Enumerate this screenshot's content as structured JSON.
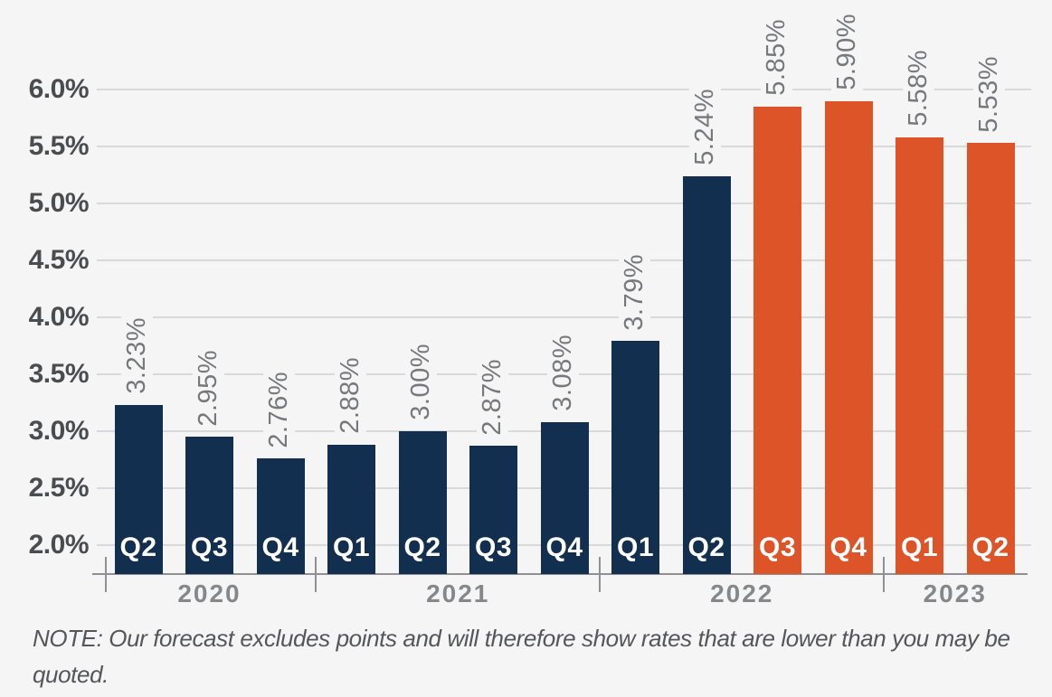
{
  "chart_data": {
    "type": "bar",
    "title": "",
    "xlabel": "",
    "ylabel": "",
    "ylim": [
      2.0,
      6.0
    ],
    "ytick_step": 0.5,
    "yticks": [
      {
        "value": 6.0,
        "label": "6.0%"
      },
      {
        "value": 5.5,
        "label": "5.5%"
      },
      {
        "value": 5.0,
        "label": "5.0%"
      },
      {
        "value": 4.5,
        "label": "4.5%"
      },
      {
        "value": 4.0,
        "label": "4.0%"
      },
      {
        "value": 3.5,
        "label": "3.5%"
      },
      {
        "value": 3.0,
        "label": "3.0%"
      },
      {
        "value": 2.5,
        "label": "2.5%"
      },
      {
        "value": 2.0,
        "label": "2.0%"
      }
    ],
    "grid": true,
    "legend": "none",
    "series_colors": {
      "actual": "#122f4f",
      "forecast": "#dc5427"
    },
    "x_groups": [
      "2020",
      "2021",
      "2022",
      "2023"
    ],
    "bars": [
      {
        "year": "2020",
        "quarter": "Q2",
        "value": 3.23,
        "label": "3.23%",
        "series": "actual"
      },
      {
        "year": "2020",
        "quarter": "Q3",
        "value": 2.95,
        "label": "2.95%",
        "series": "actual"
      },
      {
        "year": "2020",
        "quarter": "Q4",
        "value": 2.76,
        "label": "2.76%",
        "series": "actual"
      },
      {
        "year": "2021",
        "quarter": "Q1",
        "value": 2.88,
        "label": "2.88%",
        "series": "actual"
      },
      {
        "year": "2021",
        "quarter": "Q2",
        "value": 3.0,
        "label": "3.00%",
        "series": "actual"
      },
      {
        "year": "2021",
        "quarter": "Q3",
        "value": 2.87,
        "label": "2.87%",
        "series": "actual"
      },
      {
        "year": "2021",
        "quarter": "Q4",
        "value": 3.08,
        "label": "3.08%",
        "series": "actual"
      },
      {
        "year": "2022",
        "quarter": "Q1",
        "value": 3.79,
        "label": "3.79%",
        "series": "actual"
      },
      {
        "year": "2022",
        "quarter": "Q2",
        "value": 5.24,
        "label": "5.24%",
        "series": "actual"
      },
      {
        "year": "2022",
        "quarter": "Q3",
        "value": 5.85,
        "label": "5.85%",
        "series": "forecast"
      },
      {
        "year": "2022",
        "quarter": "Q4",
        "value": 5.9,
        "label": "5.90%",
        "series": "forecast"
      },
      {
        "year": "2023",
        "quarter": "Q1",
        "value": 5.58,
        "label": "5.58%",
        "series": "forecast"
      },
      {
        "year": "2023",
        "quarter": "Q2",
        "value": 5.53,
        "label": "5.53%",
        "series": "forecast"
      }
    ]
  },
  "note": {
    "text": "NOTE: Our forecast excludes points and will therefore show rates that are lower than you may be quoted."
  },
  "colors": {
    "background": "#f5f5f6",
    "bar_actual": "#122f4f",
    "bar_forecast": "#dc5427",
    "gridline": "#d8d9da",
    "axis": "#8e9093",
    "y_tick_label": "#4b4c4e",
    "value_label": "#77787b",
    "year_label": "#85878a",
    "quarter_label": "#ffffff",
    "note_text": "#55565a"
  }
}
